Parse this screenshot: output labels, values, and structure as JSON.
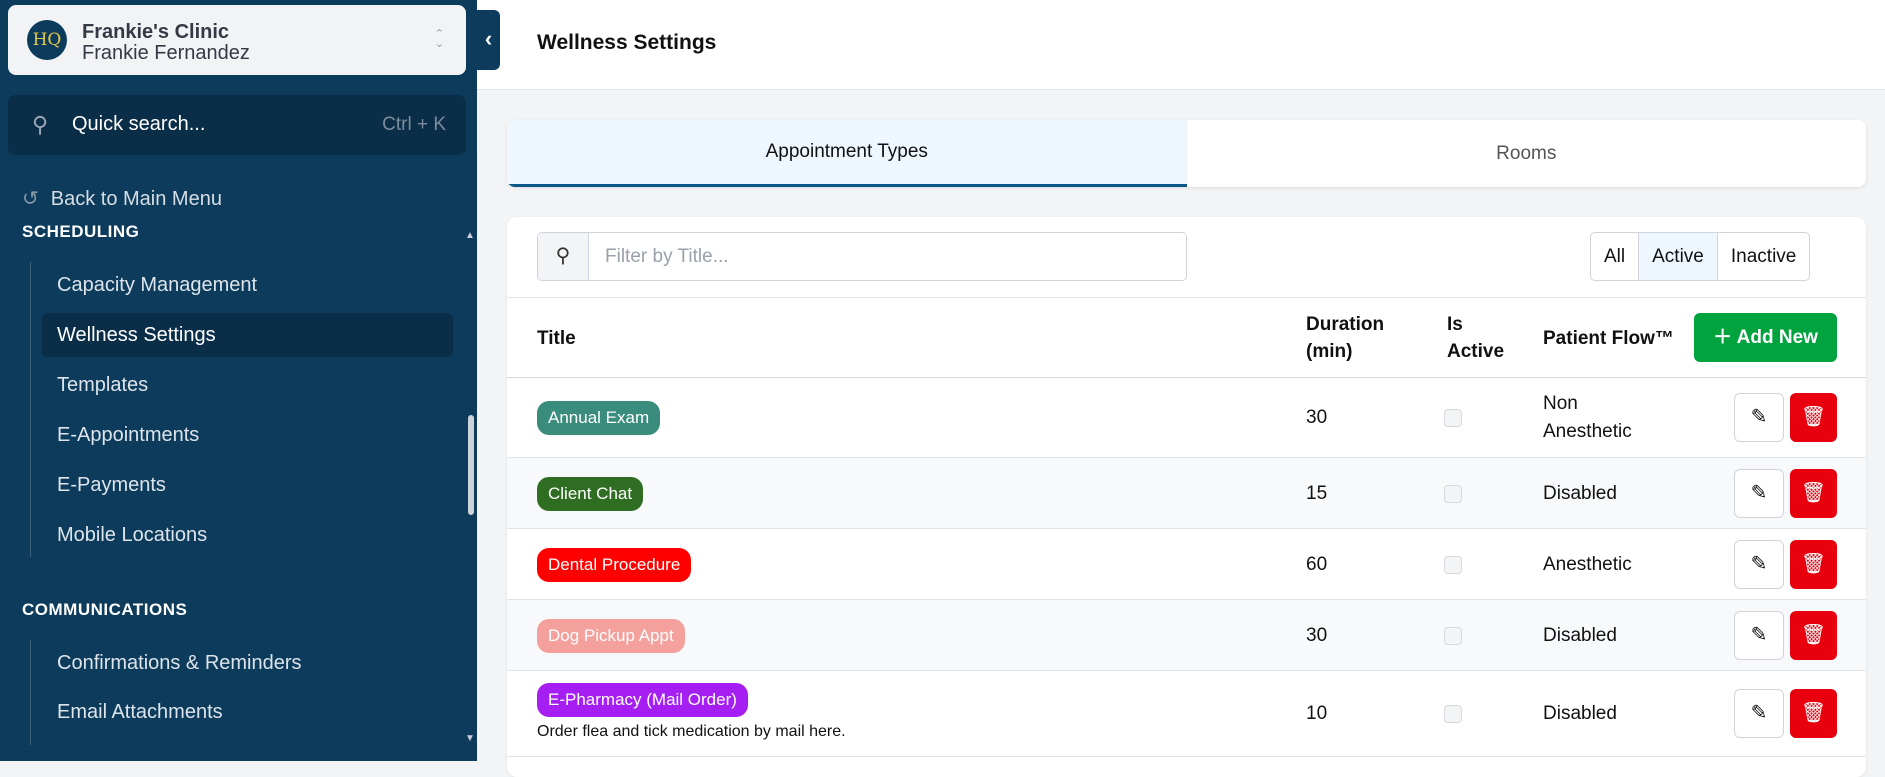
{
  "sidebar": {
    "logo_text": "HQ",
    "clinic": "Frankie's Clinic",
    "user": "Frankie Fernandez",
    "search_placeholder": "Quick search...",
    "search_shortcut": "Ctrl + K",
    "back": "Back to Main Menu",
    "sections": [
      {
        "title": "SCHEDULING",
        "items": [
          "Capacity Management",
          "Wellness Settings",
          "Templates",
          "E-Appointments",
          "E-Payments",
          "Mobile Locations"
        ]
      },
      {
        "title": "COMMUNICATIONS",
        "items": [
          "Confirmations & Reminders",
          "Email Attachments"
        ]
      }
    ],
    "active_item": "Wellness Settings"
  },
  "header": {
    "title": "Wellness Settings"
  },
  "tabs": [
    {
      "label": "Appointment Types",
      "active": true
    },
    {
      "label": "Rooms",
      "active": false
    }
  ],
  "filter": {
    "placeholder": "Filter by Title...",
    "value": ""
  },
  "status_filter": {
    "options": [
      "All",
      "Active",
      "Inactive"
    ],
    "selected": "Active"
  },
  "table": {
    "headers": {
      "title": "Title",
      "duration": "Duration (min)",
      "is_active": "Is Active",
      "patient_flow": "Patient Flow™",
      "add_new": "Add New"
    },
    "rows": [
      {
        "title": "Annual Exam",
        "color": "#3a8c7c",
        "description": "",
        "duration": "30",
        "active": true,
        "patient_flow": "Non Anesthetic"
      },
      {
        "title": "Client Chat",
        "color": "#2f6e22",
        "description": "",
        "duration": "15",
        "active": true,
        "patient_flow": "Disabled"
      },
      {
        "title": "Dental Procedure",
        "color": "#ff0000",
        "description": "",
        "duration": "60",
        "active": true,
        "patient_flow": "Anesthetic"
      },
      {
        "title": "Dog Pickup Appt",
        "color": "#f4a09c",
        "description": "",
        "duration": "30",
        "active": true,
        "patient_flow": "Disabled"
      },
      {
        "title": "E-Pharmacy (Mail Order)",
        "color": "#a61ff2",
        "description": "Order flea and tick medication by mail here.",
        "duration": "10",
        "active": true,
        "patient_flow": "Disabled"
      }
    ]
  }
}
